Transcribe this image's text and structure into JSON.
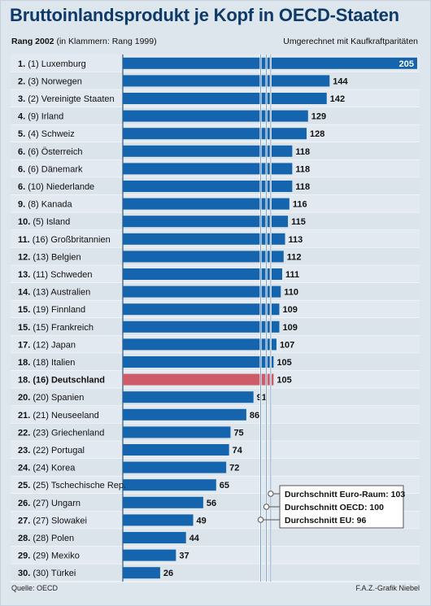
{
  "header": {
    "title": "Bruttoinlandsprodukt je Kopf in OECD-Staaten",
    "subtitle_left_bold": "Rang 2002",
    "subtitle_left_rest": " (in Klammern: Rang 1999)",
    "subtitle_right": "Umgerechnet mit Kaufkraftparitäten"
  },
  "footer": {
    "source": "Quelle: OECD",
    "credit": "F.A.Z.-Grafik Niebel"
  },
  "colors": {
    "bar": "#1464ae",
    "highlight": "#cd5b68",
    "background": "#dde5ed",
    "title": "#0d3a68",
    "reference_lines": "#7aa0c4"
  },
  "chart_data": {
    "type": "bar",
    "orientation": "horizontal",
    "title": "Bruttoinlandsprodukt je Kopf in OECD-Staaten",
    "unit_note": "Umgerechnet mit Kaufkraftparitäten",
    "categories": [
      "Luxemburg",
      "Norwegen",
      "Vereinigte Staaten",
      "Irland",
      "Schweiz",
      "Österreich",
      "Dänemark",
      "Niederlande",
      "Kanada",
      "Island",
      "Großbritannien",
      "Belgien",
      "Schweden",
      "Australien",
      "Finnland",
      "Frankreich",
      "Japan",
      "Italien",
      "Deutschland",
      "Spanien",
      "Neuseeland",
      "Griechenland",
      "Portugal",
      "Korea",
      "Tschechische Rep.",
      "Ungarn",
      "Slowakei",
      "Polen",
      "Mexiko",
      "Türkei"
    ],
    "rank_2002": [
      "1.",
      "2.",
      "3.",
      "4.",
      "5.",
      "6.",
      "6.",
      "6.",
      "9.",
      "10.",
      "11.",
      "12.",
      "13.",
      "14.",
      "15.",
      "15.",
      "17.",
      "18.",
      "18.",
      "20.",
      "21.",
      "22.",
      "23.",
      "24.",
      "25.",
      "26.",
      "27.",
      "28.",
      "29.",
      "30."
    ],
    "rank_1999": [
      "(1)",
      "(3)",
      "(2)",
      "(9)",
      "(4)",
      "(6)",
      "(6)",
      "(10)",
      "(8)",
      "(5)",
      "(16)",
      "(13)",
      "(11)",
      "(13)",
      "(19)",
      "(15)",
      "(12)",
      "(18)",
      "(16)",
      "(20)",
      "(21)",
      "(23)",
      "(22)",
      "(24)",
      "(25)",
      "(27)",
      "(27)",
      "(28)",
      "(29)",
      "(30)"
    ],
    "values": [
      205,
      144,
      142,
      129,
      128,
      118,
      118,
      118,
      116,
      115,
      113,
      112,
      111,
      110,
      109,
      109,
      107,
      105,
      105,
      91,
      86,
      75,
      74,
      72,
      65,
      56,
      49,
      44,
      37,
      26
    ],
    "highlight_index": 18,
    "reference_lines": [
      {
        "label": "Durchschnitt Euro-Raum: 103",
        "value": 103
      },
      {
        "label": "Durchschnitt OECD: 100",
        "value": 100
      },
      {
        "label": "Durchschnitt EU: 96",
        "value": 96
      }
    ],
    "grid": false
  }
}
